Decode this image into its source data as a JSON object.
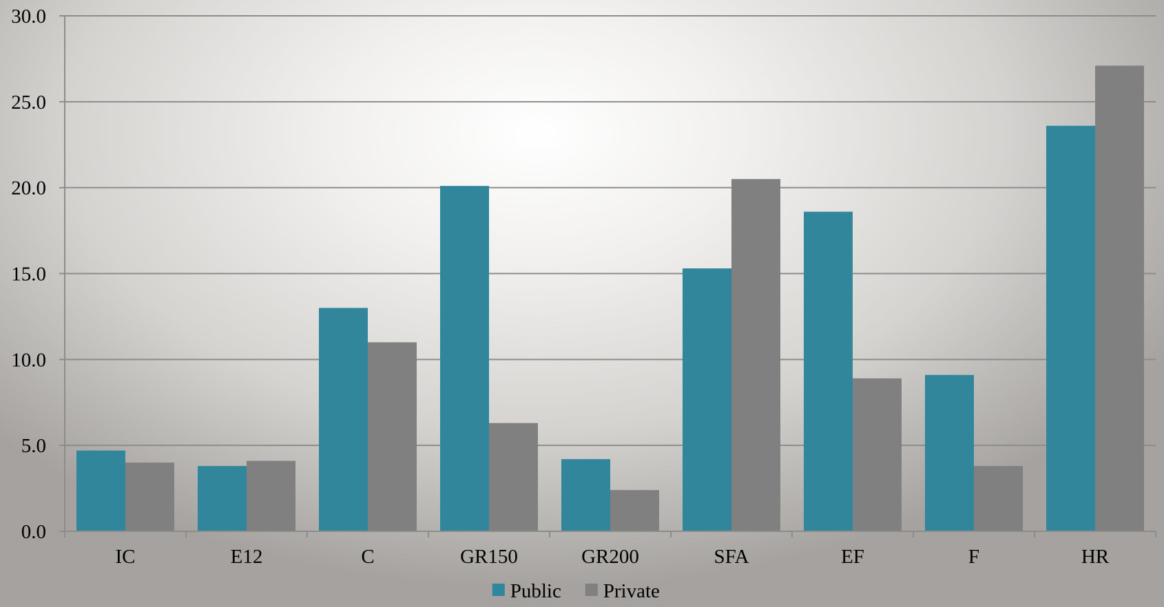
{
  "chart_data": {
    "type": "bar",
    "categories": [
      "IC",
      "E12",
      "C",
      "GR150",
      "GR200",
      "SFA",
      "EF",
      "F",
      "HR"
    ],
    "series": [
      {
        "name": "Public",
        "color": "#31869b",
        "values": [
          4.7,
          3.8,
          13.0,
          20.1,
          4.2,
          15.3,
          18.6,
          9.1,
          23.6
        ]
      },
      {
        "name": "Private",
        "color": "#808080",
        "values": [
          4.0,
          4.1,
          11.0,
          6.3,
          2.4,
          20.5,
          8.9,
          3.8,
          27.1
        ]
      }
    ],
    "ylim": [
      0,
      30
    ],
    "yticks": [
      "0.0",
      "5.0",
      "10.0",
      "15.0",
      "20.0",
      "25.0",
      "30.0"
    ],
    "ytick_values": [
      0,
      5,
      10,
      15,
      20,
      25,
      30
    ],
    "grid": true,
    "legend_position": "bottom-center",
    "gridline_color": "#8c8c8c",
    "axis_color": "#8c8c8c"
  }
}
